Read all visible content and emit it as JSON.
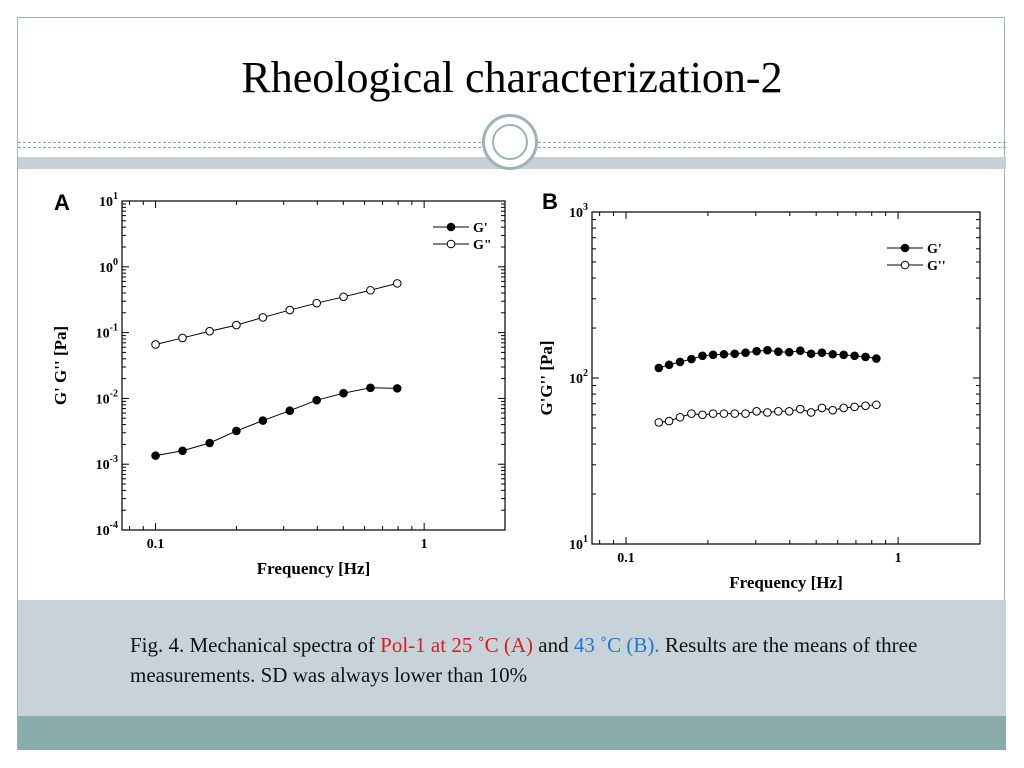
{
  "slide": {
    "title": "Rheological characterization-2",
    "caption": {
      "part1": "Fig. 4. Mechanical spectra of ",
      "red": "Pol-1 at 25 ˚C (A)",
      "part2": " and ",
      "blue": "43 ˚C (B).",
      "part3": " Results are the means of three measurements. SD was always lower than 10%"
    },
    "colors": {
      "frame": "#9fb3b8",
      "caption_bg": "#c7d3d8",
      "footer_band": "#8aabab",
      "red": "#d81e1e",
      "blue": "#1f77d0"
    }
  },
  "chart_data": [
    {
      "panel": "A",
      "type": "line",
      "xlabel": "Frequency [Hz]",
      "ylabel": "G' G'' [Pa]",
      "x_scale": "log",
      "y_scale": "log",
      "xlim": [
        0.075,
        2.0
      ],
      "ylim": [
        0.0001,
        10
      ],
      "x_ticks": [
        "0.1",
        "1"
      ],
      "y_ticks": [
        {
          "base": "10",
          "exp": "1"
        },
        {
          "base": "10",
          "exp": "0"
        },
        {
          "base": "10",
          "exp": "-1"
        },
        {
          "base": "10",
          "exp": "-2"
        },
        {
          "base": "10",
          "exp": "-3"
        },
        {
          "base": "10",
          "exp": "-4"
        }
      ],
      "legend_position": "top-right",
      "series": [
        {
          "name": "G'",
          "marker": "filled-circle",
          "x": [
            0.1,
            0.126,
            0.159,
            0.2,
            0.251,
            0.316,
            0.398,
            0.501,
            0.631,
            0.794
          ],
          "y": [
            0.00135,
            0.0016,
            0.0021,
            0.0032,
            0.0046,
            0.0065,
            0.0094,
            0.012,
            0.0145,
            0.0142
          ]
        },
        {
          "name": "G\"",
          "marker": "open-circle",
          "x": [
            0.1,
            0.126,
            0.159,
            0.2,
            0.251,
            0.316,
            0.398,
            0.501,
            0.631,
            0.794
          ],
          "y": [
            0.066,
            0.083,
            0.105,
            0.13,
            0.17,
            0.22,
            0.28,
            0.35,
            0.44,
            0.56
          ]
        }
      ]
    },
    {
      "panel": "B",
      "type": "line",
      "xlabel": "Frequency [Hz]",
      "ylabel": "G'G'' [Pa]",
      "x_scale": "log",
      "y_scale": "log",
      "xlim": [
        0.075,
        2.0
      ],
      "ylim": [
        10,
        1000
      ],
      "x_ticks": [
        "0.1",
        "1"
      ],
      "y_ticks": [
        {
          "base": "10",
          "exp": "3"
        },
        {
          "base": "10",
          "exp": "2"
        },
        {
          "base": "10",
          "exp": "1"
        }
      ],
      "legend_position": "top-right",
      "series": [
        {
          "name": "G'",
          "marker": "filled-circle",
          "x": [
            0.132,
            0.144,
            0.158,
            0.174,
            0.191,
            0.209,
            0.229,
            0.251,
            0.275,
            0.302,
            0.331,
            0.363,
            0.398,
            0.437,
            0.479,
            0.525,
            0.575,
            0.631,
            0.692,
            0.759,
            0.832
          ],
          "y": [
            115,
            120,
            125,
            130,
            136,
            138,
            139,
            140,
            142,
            145,
            147,
            144,
            143,
            146,
            140,
            142,
            139,
            138,
            136,
            134,
            131
          ]
        },
        {
          "name": "G''",
          "marker": "open-circle",
          "x": [
            0.132,
            0.144,
            0.158,
            0.174,
            0.191,
            0.209,
            0.229,
            0.251,
            0.275,
            0.302,
            0.331,
            0.363,
            0.398,
            0.437,
            0.479,
            0.525,
            0.575,
            0.631,
            0.692,
            0.759,
            0.832
          ],
          "y": [
            54,
            55,
            58,
            61,
            60,
            61,
            61,
            61,
            61,
            63,
            62,
            63,
            63,
            65,
            62,
            66,
            64,
            66,
            67,
            68,
            69
          ]
        }
      ]
    }
  ]
}
